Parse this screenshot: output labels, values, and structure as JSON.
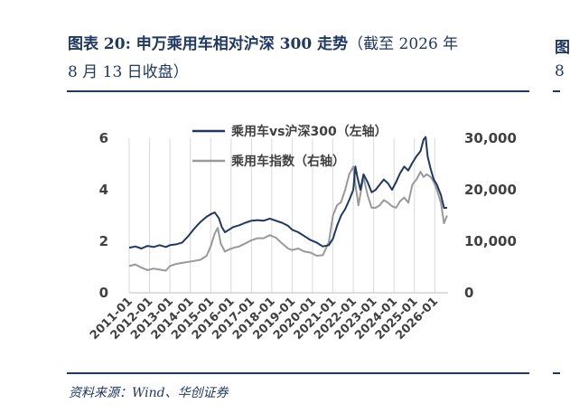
{
  "header": {
    "title": "图表 20:  申万乘用车相对沪深 300 走势",
    "subtitle_part1": "（截至 2026 年",
    "subtitle_part2": "8 月 13 日收盘）"
  },
  "footer": {
    "source": "资料来源：Wind、华创证券"
  },
  "clipped": {
    "top_char": "图",
    "bottom_char": "8"
  },
  "chart_data": {
    "type": "line",
    "x_tick_labels": [
      "2011-01",
      "2012-01",
      "2013-01",
      "2014-01",
      "2015-01",
      "2016-01",
      "2017-01",
      "2018-01",
      "2019-01",
      "2020-01",
      "2021-01",
      "2022-01",
      "2023-01",
      "2024-01",
      "2025-01",
      "2026-01"
    ],
    "left_axis": {
      "ticks": [
        "0",
        "2",
        "4",
        "6"
      ],
      "range": [
        0,
        6
      ]
    },
    "right_axis": {
      "ticks": [
        "0",
        "10,000",
        "20,000",
        "30,000"
      ],
      "range": [
        0,
        30000
      ]
    },
    "legend_position": "top-center",
    "grid": "vertical",
    "series": [
      {
        "name": "乘用车vs沪深300（左轴）",
        "axis": "left",
        "color": "#1f3864",
        "points": [
          [
            2011.0,
            1.75
          ],
          [
            2011.3,
            1.8
          ],
          [
            2011.6,
            1.72
          ],
          [
            2011.9,
            1.82
          ],
          [
            2012.2,
            1.78
          ],
          [
            2012.5,
            1.85
          ],
          [
            2012.8,
            1.78
          ],
          [
            2013.0,
            1.85
          ],
          [
            2013.3,
            1.88
          ],
          [
            2013.6,
            1.95
          ],
          [
            2013.9,
            2.2
          ],
          [
            2014.2,
            2.5
          ],
          [
            2014.5,
            2.75
          ],
          [
            2014.8,
            2.95
          ],
          [
            2015.0,
            3.05
          ],
          [
            2015.2,
            3.12
          ],
          [
            2015.4,
            2.9
          ],
          [
            2015.55,
            2.55
          ],
          [
            2015.7,
            2.35
          ],
          [
            2015.9,
            2.45
          ],
          [
            2016.1,
            2.55
          ],
          [
            2016.4,
            2.62
          ],
          [
            2016.7,
            2.72
          ],
          [
            2017.0,
            2.8
          ],
          [
            2017.3,
            2.82
          ],
          [
            2017.6,
            2.8
          ],
          [
            2017.9,
            2.88
          ],
          [
            2018.2,
            2.8
          ],
          [
            2018.5,
            2.72
          ],
          [
            2018.8,
            2.6
          ],
          [
            2019.0,
            2.45
          ],
          [
            2019.3,
            2.35
          ],
          [
            2019.6,
            2.2
          ],
          [
            2019.9,
            2.05
          ],
          [
            2020.2,
            1.95
          ],
          [
            2020.5,
            1.8
          ],
          [
            2020.8,
            1.85
          ],
          [
            2021.0,
            2.1
          ],
          [
            2021.2,
            2.6
          ],
          [
            2021.4,
            3.0
          ],
          [
            2021.6,
            3.25
          ],
          [
            2021.8,
            3.6
          ],
          [
            2022.0,
            4.0
          ],
          [
            2022.1,
            4.9
          ],
          [
            2022.2,
            4.5
          ],
          [
            2022.35,
            4.0
          ],
          [
            2022.5,
            4.6
          ],
          [
            2022.7,
            4.3
          ],
          [
            2022.9,
            3.9
          ],
          [
            2023.1,
            4.0
          ],
          [
            2023.3,
            4.2
          ],
          [
            2023.5,
            4.4
          ],
          [
            2023.7,
            4.25
          ],
          [
            2023.9,
            4.0
          ],
          [
            2024.1,
            4.3
          ],
          [
            2024.3,
            4.65
          ],
          [
            2024.5,
            4.9
          ],
          [
            2024.7,
            4.75
          ],
          [
            2024.9,
            5.05
          ],
          [
            2025.1,
            5.3
          ],
          [
            2025.3,
            5.5
          ],
          [
            2025.45,
            5.95
          ],
          [
            2025.55,
            6.05
          ],
          [
            2025.65,
            5.3
          ],
          [
            2025.8,
            4.8
          ],
          [
            2025.95,
            4.4
          ],
          [
            2026.1,
            4.2
          ],
          [
            2026.3,
            3.8
          ],
          [
            2026.45,
            3.3
          ],
          [
            2026.6,
            3.3
          ]
        ]
      },
      {
        "name": "乘用车指数（右轴）",
        "axis": "right",
        "color": "#999999",
        "points": [
          [
            2011.0,
            5200
          ],
          [
            2011.3,
            5500
          ],
          [
            2011.6,
            4900
          ],
          [
            2011.9,
            4400
          ],
          [
            2012.2,
            4700
          ],
          [
            2012.5,
            4500
          ],
          [
            2012.8,
            4300
          ],
          [
            2013.0,
            5200
          ],
          [
            2013.3,
            5600
          ],
          [
            2013.6,
            5800
          ],
          [
            2013.9,
            6000
          ],
          [
            2014.2,
            6200
          ],
          [
            2014.5,
            6400
          ],
          [
            2014.8,
            7200
          ],
          [
            2015.0,
            9000
          ],
          [
            2015.2,
            11500
          ],
          [
            2015.35,
            12600
          ],
          [
            2015.5,
            9500
          ],
          [
            2015.7,
            8000
          ],
          [
            2015.9,
            8400
          ],
          [
            2016.1,
            8700
          ],
          [
            2016.4,
            9000
          ],
          [
            2016.7,
            9600
          ],
          [
            2017.0,
            10200
          ],
          [
            2017.3,
            10600
          ],
          [
            2017.6,
            10600
          ],
          [
            2017.9,
            11200
          ],
          [
            2018.2,
            10700
          ],
          [
            2018.5,
            9600
          ],
          [
            2018.8,
            8600
          ],
          [
            2019.0,
            8300
          ],
          [
            2019.3,
            8600
          ],
          [
            2019.6,
            8000
          ],
          [
            2019.9,
            7800
          ],
          [
            2020.2,
            7200
          ],
          [
            2020.5,
            7300
          ],
          [
            2020.8,
            9800
          ],
          [
            2021.0,
            15000
          ],
          [
            2021.2,
            17000
          ],
          [
            2021.4,
            17600
          ],
          [
            2021.6,
            20000
          ],
          [
            2021.8,
            23000
          ],
          [
            2022.0,
            24500
          ],
          [
            2022.1,
            21000
          ],
          [
            2022.25,
            17000
          ],
          [
            2022.5,
            22500
          ],
          [
            2022.7,
            19000
          ],
          [
            2022.9,
            16500
          ],
          [
            2023.1,
            16500
          ],
          [
            2023.3,
            17000
          ],
          [
            2023.5,
            18000
          ],
          [
            2023.7,
            17500
          ],
          [
            2023.9,
            16800
          ],
          [
            2024.1,
            16500
          ],
          [
            2024.3,
            17800
          ],
          [
            2024.5,
            18500
          ],
          [
            2024.7,
            17500
          ],
          [
            2024.9,
            21000
          ],
          [
            2025.1,
            22000
          ],
          [
            2025.3,
            23500
          ],
          [
            2025.45,
            22500
          ],
          [
            2025.6,
            23000
          ],
          [
            2025.8,
            22500
          ],
          [
            2025.95,
            21500
          ],
          [
            2026.1,
            20000
          ],
          [
            2026.3,
            17500
          ],
          [
            2026.45,
            13500
          ],
          [
            2026.6,
            15000
          ]
        ]
      }
    ]
  }
}
